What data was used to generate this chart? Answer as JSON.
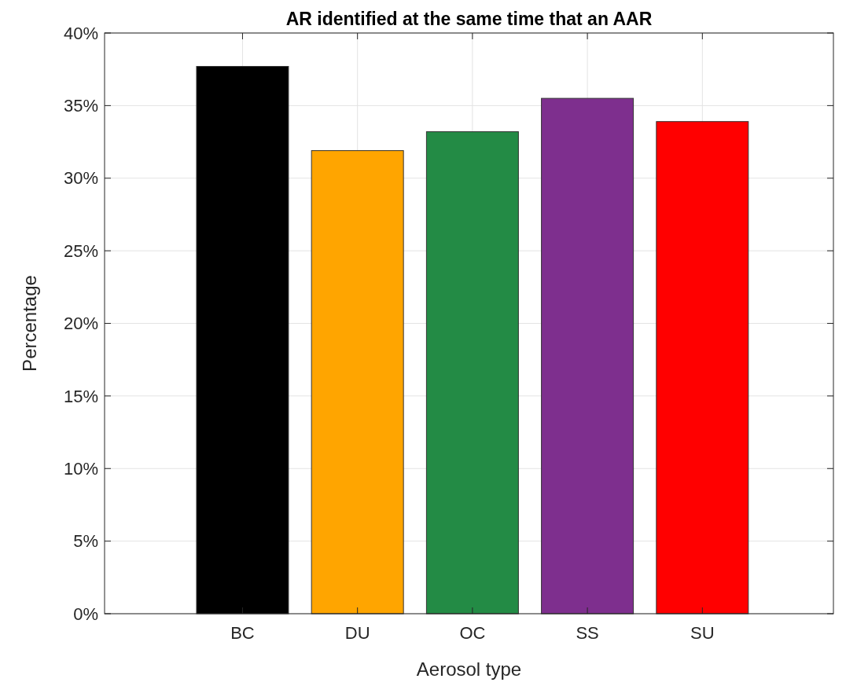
{
  "chart_data": {
    "type": "bar",
    "title": "AR identified at the same time that an AAR",
    "xlabel": "Aerosol type",
    "ylabel": "Percentage",
    "categories": [
      "BC",
      "DU",
      "OC",
      "SS",
      "SU"
    ],
    "values": [
      37.7,
      31.9,
      33.2,
      35.5,
      33.9
    ],
    "colors": [
      "#000000",
      "#ffa500",
      "#238b45",
      "#7e2f8e",
      "#ff0000"
    ],
    "ylim": [
      0,
      40
    ],
    "yticks": [
      {
        "value": 0,
        "label": "0%"
      },
      {
        "value": 5,
        "label": "5%"
      },
      {
        "value": 10,
        "label": "10%"
      },
      {
        "value": 15,
        "label": "15%"
      },
      {
        "value": 20,
        "label": "20%"
      },
      {
        "value": 25,
        "label": "25%"
      },
      {
        "value": 30,
        "label": "30%"
      },
      {
        "value": 35,
        "label": "35%"
      },
      {
        "value": 40,
        "label": "40%"
      }
    ],
    "grid": true
  }
}
